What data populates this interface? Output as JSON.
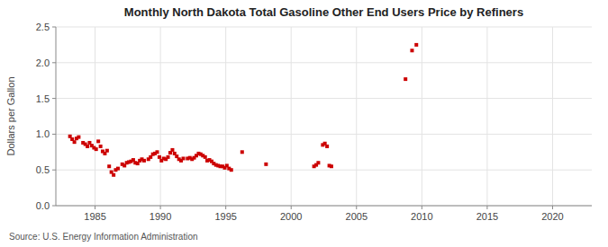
{
  "chart_data": {
    "type": "scatter",
    "title": "Monthly North Dakota Total Gasoline Other End Users Price by Refiners",
    "y_label": "Dollars per Gallon",
    "annotation": "Source: U.S. Energy Information Administration",
    "color": "#cc0000",
    "marker": "square",
    "grid": true,
    "xlim": [
      1982,
      2023
    ],
    "ylim": [
      0.0,
      2.5
    ],
    "xticks": [
      1985,
      1990,
      1995,
      2000,
      2005,
      2010,
      2015,
      2020
    ],
    "yticks": [
      {
        "value": 0.0,
        "label": "0.0"
      },
      0.5,
      {
        "value": 1.0,
        "label": "1.0"
      },
      1.5,
      {
        "value": 2.0,
        "label": "2.0"
      },
      2.5
    ],
    "x": [
      1983.08,
      1983.25,
      1983.42,
      1983.58,
      1983.75,
      1984.08,
      1984.25,
      1984.42,
      1984.58,
      1984.75,
      1984.92,
      1985.08,
      1985.25,
      1985.42,
      1985.58,
      1985.75,
      1985.92,
      1986.08,
      1986.25,
      1986.42,
      1986.58,
      1986.75,
      1987.08,
      1987.25,
      1987.42,
      1987.58,
      1987.75,
      1987.92,
      1988.08,
      1988.25,
      1988.42,
      1988.58,
      1988.75,
      1989.08,
      1989.25,
      1989.42,
      1989.58,
      1989.75,
      1989.92,
      1990.08,
      1990.25,
      1990.42,
      1990.58,
      1990.75,
      1990.92,
      1991.08,
      1991.25,
      1991.42,
      1991.58,
      1991.75,
      1992.08,
      1992.25,
      1992.42,
      1992.58,
      1992.75,
      1992.92,
      1993.08,
      1993.25,
      1993.42,
      1993.58,
      1993.75,
      1993.92,
      1994.08,
      1994.25,
      1994.42,
      1994.58,
      1994.75,
      1994.92,
      1995.08,
      1995.25,
      1995.42,
      1996.25,
      1998.08,
      2001.75,
      2001.92,
      2002.08,
      2002.42,
      2002.58,
      2002.75,
      2002.92,
      2003.08,
      2008.75,
      2009.25,
      2009.58
    ],
    "values": [
      0.97,
      0.93,
      0.89,
      0.94,
      0.96,
      0.88,
      0.86,
      0.83,
      0.88,
      0.84,
      0.81,
      0.79,
      0.9,
      0.83,
      0.76,
      0.73,
      0.77,
      0.55,
      0.47,
      0.43,
      0.5,
      0.52,
      0.58,
      0.56,
      0.6,
      0.61,
      0.62,
      0.64,
      0.6,
      0.59,
      0.63,
      0.65,
      0.63,
      0.65,
      0.68,
      0.72,
      0.73,
      0.75,
      0.68,
      0.63,
      0.66,
      0.65,
      0.68,
      0.74,
      0.78,
      0.73,
      0.69,
      0.65,
      0.63,
      0.66,
      0.66,
      0.67,
      0.65,
      0.67,
      0.7,
      0.73,
      0.72,
      0.7,
      0.68,
      0.63,
      0.64,
      0.62,
      0.59,
      0.57,
      0.56,
      0.55,
      0.55,
      0.53,
      0.56,
      0.52,
      0.5,
      0.75,
      0.58,
      0.55,
      0.57,
      0.6,
      0.85,
      0.87,
      0.83,
      0.56,
      0.55,
      1.77,
      2.17,
      2.25
    ]
  }
}
